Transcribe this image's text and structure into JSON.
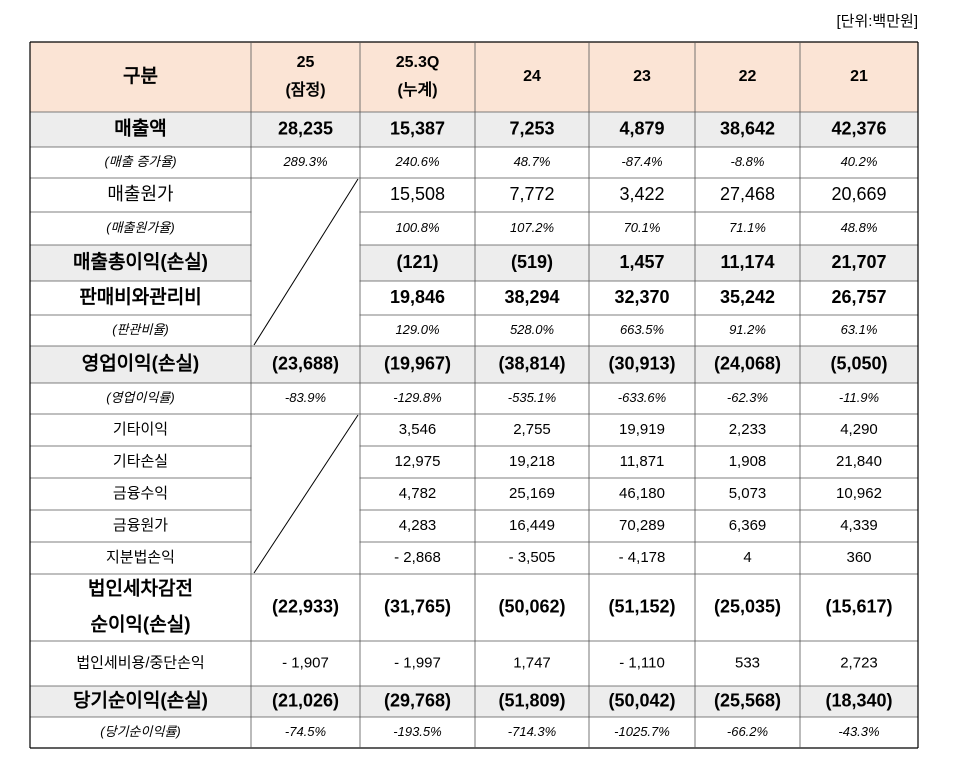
{
  "unit": "[단위:백만원]",
  "table": {
    "header": [
      "구분",
      [
        "25",
        "(잠정)"
      ],
      [
        "25.3Q",
        "(누계)"
      ],
      "24",
      "23",
      "22",
      "21"
    ],
    "rows": [
      {
        "label": "매출액",
        "cells": [
          "28,235",
          "15,387",
          "7,253",
          "4,879",
          "38,642",
          "42,376"
        ]
      },
      {
        "label": "(매출 증가율)",
        "cells": [
          "289.3%",
          "240.6%",
          "48.7%",
          "-87.4%",
          "-8.8%",
          "40.2%"
        ]
      },
      {
        "label": "매출원가",
        "cells": [
          null,
          "15,508",
          "7,772",
          "3,422",
          "27,468",
          "20,669"
        ]
      },
      {
        "label": "(매출원가율)",
        "cells": [
          null,
          "100.8%",
          "107.2%",
          "70.1%",
          "71.1%",
          "48.8%"
        ]
      },
      {
        "label": "매출총이익(손실)",
        "cells": [
          null,
          "(121)",
          "(519)",
          "1,457",
          "11,174",
          "21,707"
        ]
      },
      {
        "label": "판매비와관리비",
        "cells": [
          null,
          "19,846",
          "38,294",
          "32,370",
          "35,242",
          "26,757"
        ]
      },
      {
        "label": "(판관비율)",
        "cells": [
          null,
          "129.0%",
          "528.0%",
          "663.5%",
          "91.2%",
          "63.1%"
        ]
      },
      {
        "label": "영업이익(손실)",
        "cells": [
          "(23,688)",
          "(19,967)",
          "(38,814)",
          "(30,913)",
          "(24,068)",
          "(5,050)"
        ]
      },
      {
        "label": "(영업이익률)",
        "cells": [
          "-83.9%",
          "-129.8%",
          "-535.1%",
          "-633.6%",
          "-62.3%",
          "-11.9%"
        ]
      },
      {
        "label": "기타이익",
        "cells": [
          null,
          "3,546",
          "2,755",
          "19,919",
          "2,233",
          "4,290"
        ]
      },
      {
        "label": "기타손실",
        "cells": [
          null,
          "12,975",
          "19,218",
          "11,871",
          "1,908",
          "21,840"
        ]
      },
      {
        "label": "금융수익",
        "cells": [
          null,
          "4,782",
          "25,169",
          "46,180",
          "5,073",
          "10,962"
        ]
      },
      {
        "label": "금융원가",
        "cells": [
          null,
          "4,283",
          "16,449",
          "70,289",
          "6,369",
          "4,339"
        ]
      },
      {
        "label": "지분법손익",
        "cells": [
          null,
          "- 2,868",
          "- 3,505",
          "- 4,178",
          "4",
          "360"
        ]
      },
      {
        "label": [
          "법인세차감전",
          "순이익(손실)"
        ],
        "cells": [
          "(22,933)",
          "(31,765)",
          "(50,062)",
          "(51,152)",
          "(25,035)",
          "(15,617)"
        ]
      },
      {
        "label": "법인세비용/중단손익",
        "cells": [
          "- 1,907",
          "- 1,997",
          "1,747",
          "- 1,110",
          "533",
          "2,723"
        ]
      },
      {
        "label": "당기순이익(손실)",
        "cells": [
          "(21,026)",
          "(29,768)",
          "(51,809)",
          "(50,042)",
          "(25,568)",
          "(18,340)"
        ]
      },
      {
        "label": "(당기순이익률)",
        "cells": [
          "-74.5%",
          "-193.5%",
          "-714.3%",
          "-1025.7%",
          "-66.2%",
          "-43.3%"
        ]
      }
    ]
  }
}
